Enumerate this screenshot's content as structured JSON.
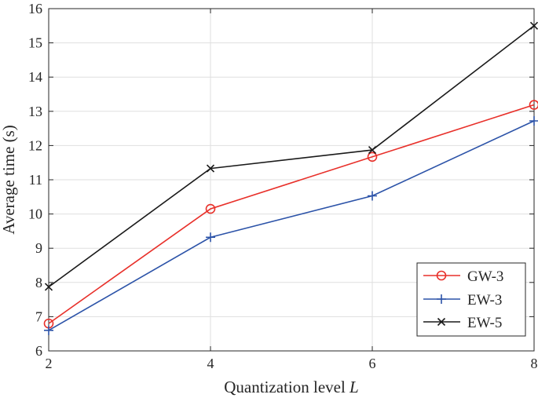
{
  "chart_data": {
    "type": "line",
    "xlabel": "Quantization level",
    "xlabel_var": "L",
    "ylabel": "Average time (s)",
    "x": [
      2,
      4,
      6,
      8
    ],
    "xlim": [
      2,
      8
    ],
    "ylim": [
      6,
      16
    ],
    "xticks": [
      2,
      4,
      6,
      8
    ],
    "yticks": [
      6,
      7,
      8,
      9,
      10,
      11,
      12,
      13,
      14,
      15,
      16
    ],
    "grid": true,
    "legend_position": "bottom-right",
    "series": [
      {
        "name": "GW-3",
        "marker": "circle",
        "color": "#e8302a",
        "values": [
          6.8,
          10.15,
          11.67,
          13.19
        ]
      },
      {
        "name": "EW-3",
        "marker": "plus",
        "color": "#2c53a8",
        "values": [
          6.6,
          9.32,
          10.53,
          12.72
        ]
      },
      {
        "name": "EW-5",
        "marker": "x",
        "color": "#1a1a1a",
        "values": [
          7.87,
          11.33,
          11.87,
          15.5
        ]
      }
    ]
  }
}
